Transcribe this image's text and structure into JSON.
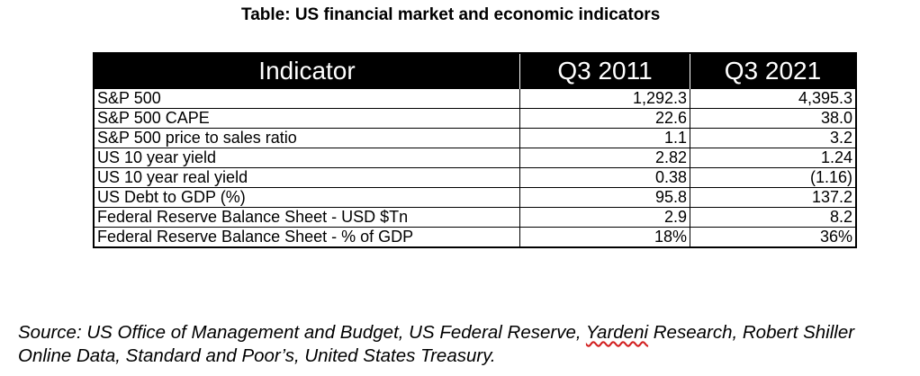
{
  "title": "Table: US financial market and economic indicators",
  "table": {
    "headers": [
      "Indicator",
      "Q3 2011",
      "Q3 2021"
    ],
    "rows": [
      {
        "indicator": "S&P 500",
        "q3_2011": "1,292.3",
        "q3_2021": "4,395.3"
      },
      {
        "indicator": "S&P 500 CAPE",
        "q3_2011": "22.6",
        "q3_2021": "38.0"
      },
      {
        "indicator": "S&P 500 price to sales ratio",
        "q3_2011": "1.1",
        "q3_2021": "3.2"
      },
      {
        "indicator": "US 10 year yield",
        "q3_2011": "2.82",
        "q3_2021": "1.24"
      },
      {
        "indicator": "US 10 year real yield",
        "q3_2011": "0.38",
        "q3_2021": "(1.16)"
      },
      {
        "indicator": "US Debt to GDP (%)",
        "q3_2011": "95.8",
        "q3_2021": "137.2"
      },
      {
        "indicator": "Federal Reserve Balance Sheet - USD $Tn",
        "q3_2011": "2.9",
        "q3_2021": "8.2"
      },
      {
        "indicator": "Federal Reserve Balance Sheet - % of GDP",
        "q3_2011": "18%",
        "q3_2021": "36%"
      }
    ]
  },
  "source": {
    "part1": "Source: US Office of Management and Budget, US Federal Reserve, ",
    "flagged_word": "Yardeni",
    "part2": " Research, Robert Shiller Online Data, Standard and Poor’s, United States Treasury."
  }
}
